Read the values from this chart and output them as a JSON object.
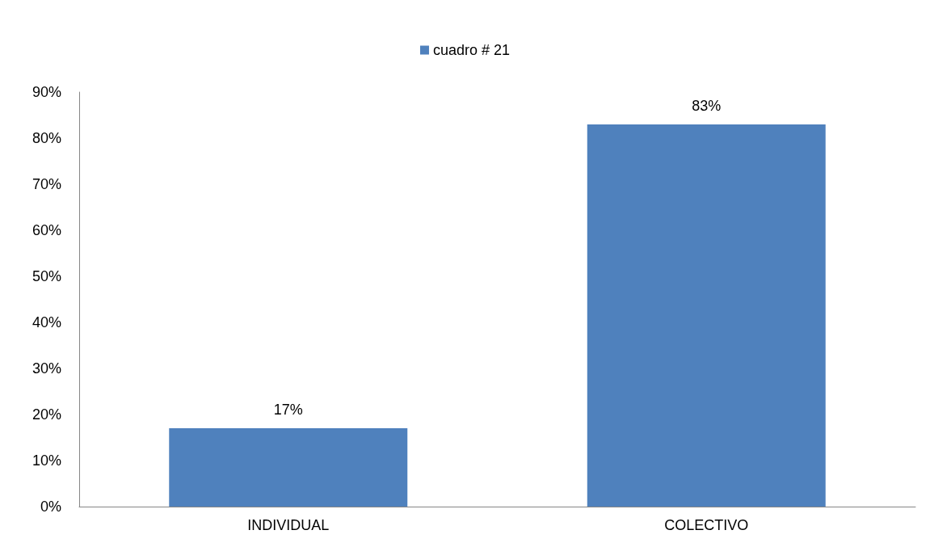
{
  "chart_data": {
    "type": "bar",
    "categories": [
      "INDIVIDUAL",
      "COLECTIVO"
    ],
    "series": [
      {
        "name": "cuadro # 21",
        "color": "#4f81bd",
        "values": [
          17,
          83
        ],
        "value_labels": [
          "17%",
          "83%"
        ]
      }
    ],
    "ylim": [
      0,
      90
    ],
    "yticks": [
      {
        "value": 0,
        "label": "0%"
      },
      {
        "value": 10,
        "label": "10%"
      },
      {
        "value": 20,
        "label": "20%"
      },
      {
        "value": 30,
        "label": "30%"
      },
      {
        "value": 40,
        "label": "40%"
      },
      {
        "value": 50,
        "label": "50%"
      },
      {
        "value": 60,
        "label": "60%"
      },
      {
        "value": 70,
        "label": "70%"
      },
      {
        "value": 80,
        "label": "80%"
      },
      {
        "value": 90,
        "label": "90%"
      }
    ],
    "grid": false,
    "legend": "top"
  }
}
